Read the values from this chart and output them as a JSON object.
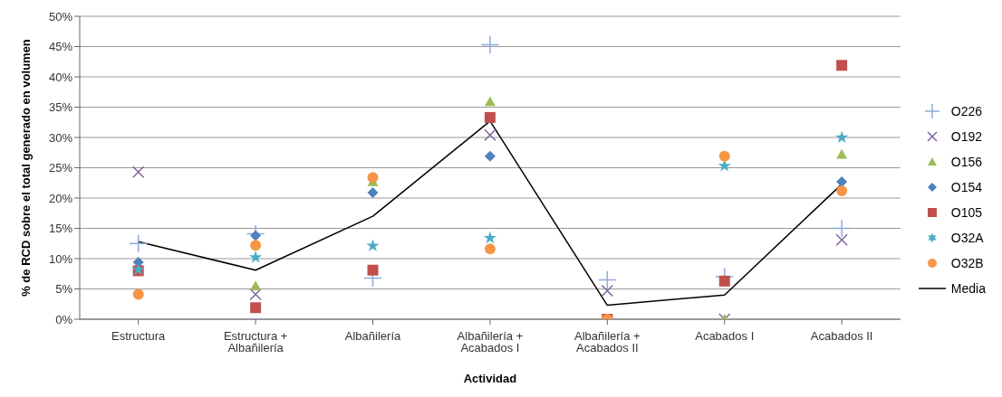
{
  "chart_data": {
    "type": "scatter",
    "xlabel": "Actividad",
    "ylabel": "% de RCD sobre el total generado en volumen",
    "categories": [
      "Estructura",
      "Estructura + Albañilería",
      "Albañilería",
      "Albañilería + Acabados I",
      "Albañilería + Acabados II",
      "Acabados I",
      "Acabados II"
    ],
    "ylim": [
      0,
      50
    ],
    "yticks": [
      {
        "value": 0,
        "label": "0%"
      },
      {
        "value": 5,
        "label": "5%"
      },
      {
        "value": 10,
        "label": "10%"
      },
      {
        "value": 15,
        "label": "15%"
      },
      {
        "value": 20,
        "label": "20%"
      },
      {
        "value": 25,
        "label": "25%"
      },
      {
        "value": 30,
        "label": "30%"
      },
      {
        "value": 35,
        "label": "35%"
      },
      {
        "value": 40,
        "label": "40%"
      },
      {
        "value": 45,
        "label": "45%"
      },
      {
        "value": 50,
        "label": "50%"
      }
    ],
    "grid": "y",
    "legend": "right",
    "series": [
      {
        "name": "O226",
        "color": "#8eaadb",
        "marker": "plus",
        "values": [
          12.5,
          14.1,
          6.8,
          45.3,
          6.5,
          7.0,
          15.0
        ]
      },
      {
        "name": "O192",
        "color": "#8064a2",
        "marker": "cross",
        "values": [
          24.3,
          4.1,
          null,
          30.4,
          4.7,
          0,
          13.1
        ]
      },
      {
        "name": "O156",
        "color": "#9bbb59",
        "marker": "triangle",
        "values": [
          null,
          5.5,
          22.7,
          35.9,
          null,
          0,
          27.2
        ]
      },
      {
        "name": "O154",
        "color": "#4f81bd",
        "marker": "diamond",
        "values": [
          9.4,
          13.8,
          20.9,
          26.9,
          null,
          null,
          22.7
        ]
      },
      {
        "name": "O105",
        "color": "#c0504d",
        "marker": "square",
        "values": [
          8.0,
          1.9,
          8.1,
          33.3,
          0,
          6.3,
          41.9
        ]
      },
      {
        "name": "O32A",
        "color": "#4bacc6",
        "marker": "star",
        "values": [
          8.2,
          10.2,
          12.1,
          13.4,
          null,
          25.3,
          30.0
        ]
      },
      {
        "name": "O32B",
        "color": "#f79646",
        "marker": "circle",
        "values": [
          4.1,
          12.2,
          23.4,
          11.6,
          0,
          26.9,
          21.2
        ]
      },
      {
        "name": "Media",
        "color": "#000000",
        "type": "line",
        "marker": "none",
        "values": [
          12.8,
          8.1,
          17.0,
          32.7,
          2.3,
          4.0,
          22.3
        ]
      }
    ]
  }
}
